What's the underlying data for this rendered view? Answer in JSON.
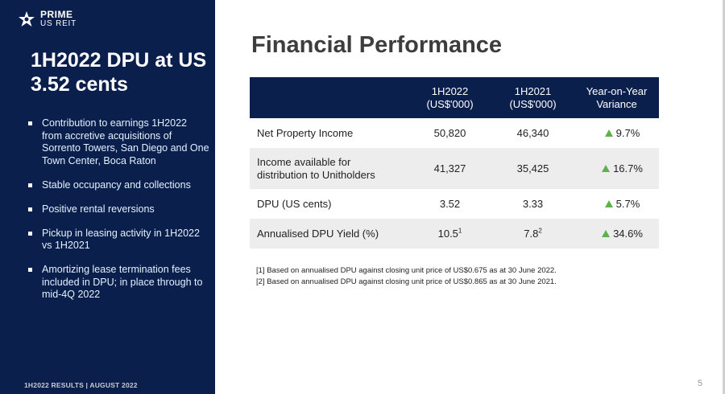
{
  "logo": {
    "line1": "PRIME",
    "line2": "US REIT"
  },
  "sidebar": {
    "title": "1H2022 DPU at US 3.52 cents",
    "bullets": [
      "Contribution to earnings 1H2022 from accretive acquisitions of Sorrento Towers, San Diego and One Town Center, Boca Raton",
      "Stable occupancy and collections",
      "Positive rental reversions",
      "Pickup in leasing activity in 1H2022 vs 1H2021",
      "Amortizing lease termination fees included in DPU;  in place through to mid-4Q 2022"
    ],
    "footer": "1H2022 RESULTS |  AUGUST 2022"
  },
  "main": {
    "title": "Financial Performance",
    "table": {
      "headers": {
        "c1_line1": "1H2022",
        "c1_line2": "(US$'000)",
        "c2_line1": "1H2021",
        "c2_line2": "(US$'000)",
        "c3_line1": "Year-on-Year",
        "c3_line2": "Variance"
      },
      "rows": [
        {
          "label": "Net Property Income",
          "v1": "50,820",
          "v2": "46,340",
          "var": "9.7%"
        },
        {
          "label_line1": "Income available for",
          "label_line2": "distribution to Unitholders",
          "v1": "41,327",
          "v2": "35,425",
          "var": "16.7%"
        },
        {
          "label": "DPU (US cents)",
          "v1": "3.52",
          "v2": "3.33",
          "var": "5.7%"
        },
        {
          "label": "Annualised DPU Yield (%)",
          "v1": "10.5",
          "v1_sup": "1",
          "v2": "7.8",
          "v2_sup": "2",
          "var": "34.6%"
        }
      ]
    },
    "notes": [
      "[1] Based on annualised DPU against closing unit price of US$0.675 as at 30 June 2022.",
      "[2] Based on annualised DPU against closing unit price of US$0.865 as at 30 June 2021."
    ]
  },
  "page_number": "5",
  "colors": {
    "navy": "#0b1f4d",
    "up_arrow": "#5fb14c",
    "row_shade": "#ededed"
  }
}
